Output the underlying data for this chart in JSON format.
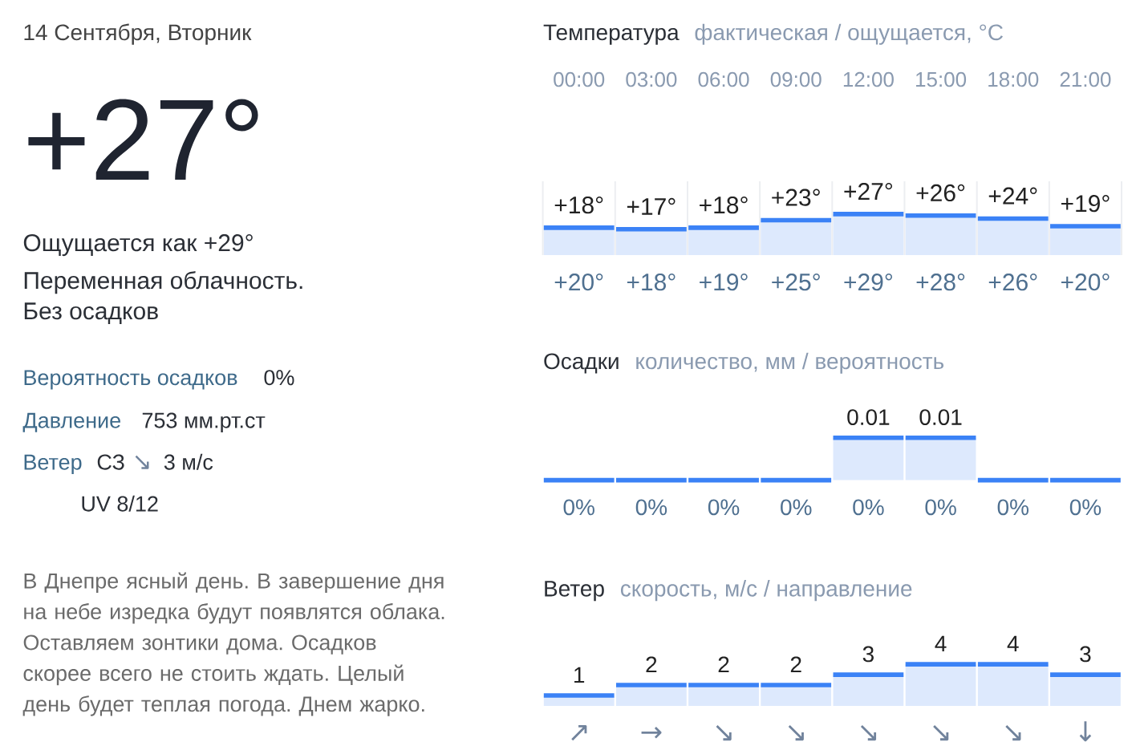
{
  "chart_data": [
    {
      "type": "other",
      "title": "14 Сентября, Вторник",
      "annotations": [
        "+27°",
        "Ощущается как +29°",
        "Переменная облачность.",
        "Без осадков",
        "Вероятность осадков",
        "0%",
        "Давление",
        "753 мм.рт.ст",
        "Ветер",
        "СЗ",
        "↘",
        "3 м/с",
        "UV 8/12",
        "В Днепре ясный день. В завершение дня на небе изредка будут появлятся облака. Оставляем зонтики дома. Осадков скорее всего не стоить ждать. Целый день будет теплая погода. Днем жарко."
      ]
    },
    {
      "type": "bar",
      "title": "Температура",
      "subtitle": "фактическая / ощущается, °C",
      "categories": [
        "00:00",
        "03:00",
        "06:00",
        "09:00",
        "12:00",
        "15:00",
        "18:00",
        "21:00"
      ],
      "values": [
        18,
        17,
        18,
        23,
        27,
        26,
        24,
        19
      ],
      "value_labels": [
        "+18°",
        "+17°",
        "+18°",
        "+23°",
        "+27°",
        "+26°",
        "+24°",
        "+19°"
      ],
      "color": "#dde9fd",
      "grid": "x",
      "annotations": [
        "+20°",
        "+18°",
        "+19°",
        "+25°",
        "+29°",
        "+28°",
        "+26°",
        "+20°"
      ]
    },
    {
      "type": "bar",
      "title": "Осадки",
      "subtitle": "количество, мм / вероятность",
      "categories": [
        null,
        null,
        null,
        null,
        null,
        null,
        null,
        null
      ],
      "values": [
        0,
        0,
        0,
        0,
        0.01,
        0.01,
        0,
        0
      ],
      "value_labels": [
        null,
        null,
        null,
        null,
        "0.01",
        "0.01",
        null,
        null
      ],
      "color": "#dde9fd",
      "grid": "x",
      "annotations": [
        "0%",
        "0%",
        "0%",
        "0%",
        "0%",
        "0%",
        "0%",
        "0%"
      ]
    },
    {
      "type": "bar",
      "title": "Ветер",
      "subtitle": "скорость, м/с / направление",
      "categories": [
        null,
        null,
        null,
        null,
        null,
        null,
        null,
        null
      ],
      "values": [
        1,
        2,
        2,
        2,
        3,
        4,
        4,
        3
      ],
      "data_labels": true,
      "color": "#dde9fd",
      "grid": "x",
      "annotations": [
        "↗",
        "→",
        "↘",
        "↘",
        "↘",
        "↘",
        "↘",
        "↓"
      ]
    }
  ]
}
